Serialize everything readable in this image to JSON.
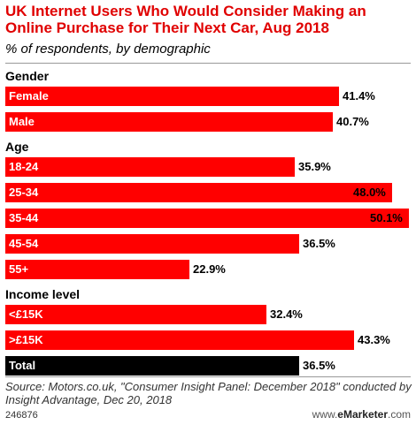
{
  "chart_data": {
    "type": "bar",
    "title": "UK Internet Users Who Would Consider Making an Online Purchase for Their Next Car, Aug 2018",
    "subtitle": "% of respondents, by demographic",
    "xlim": [
      0,
      50.1
    ],
    "groups": [
      {
        "label": "Gender",
        "items": [
          {
            "category": "Female",
            "value": 41.4,
            "display": "41.4%"
          },
          {
            "category": "Male",
            "value": 40.7,
            "display": "40.7%"
          }
        ]
      },
      {
        "label": "Age",
        "items": [
          {
            "category": "18-24",
            "value": 35.9,
            "display": "35.9%"
          },
          {
            "category": "25-34",
            "value": 48.0,
            "display": "48.0%"
          },
          {
            "category": "35-44",
            "value": 50.1,
            "display": "50.1%"
          },
          {
            "category": "45-54",
            "value": 36.5,
            "display": "36.5%"
          },
          {
            "category": "55+",
            "value": 22.9,
            "display": "22.9%"
          }
        ]
      },
      {
        "label": "Income level",
        "items": [
          {
            "category": "<£15K",
            "value": 32.4,
            "display": "32.4%"
          },
          {
            "category": ">£15K",
            "value": 43.3,
            "display": "43.3%"
          }
        ]
      }
    ],
    "total": {
      "category": "Total",
      "value": 36.5,
      "display": "36.5%"
    },
    "colors": {
      "bar": "#ff0000",
      "total_bar": "#000000",
      "title": "#e00000"
    }
  },
  "footer": {
    "source": "Source: Motors.co.uk, \"Consumer Insight Panel: December 2018\" conducted by Insight Advantage, Dec 20, 2018",
    "chart_id": "246876",
    "brand_prefix": "www.",
    "brand_name": "eMarketer",
    "brand_suffix": ".com"
  }
}
